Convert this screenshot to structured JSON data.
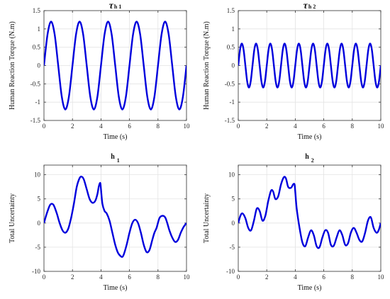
{
  "chart_data": [
    {
      "type": "line",
      "title_main": "τ",
      "title_sub": "h 1",
      "xlabel": "Time (s)",
      "ylabel": "Human Reaction Torque (N.m)",
      "xlim": [
        0,
        10
      ],
      "ylim": [
        -1.5,
        1.5
      ],
      "xticks": [
        0,
        2,
        4,
        6,
        8,
        10
      ],
      "yticks": [
        -1.5,
        -1,
        -0.5,
        0,
        0.5,
        1,
        1.5
      ],
      "grid": true,
      "color": "#0000dd",
      "series": [
        {
          "x": [
            0,
            0.25,
            0.5,
            0.75,
            1,
            1.25,
            1.5,
            1.75,
            2,
            2.25,
            2.5,
            2.75,
            3,
            3.25,
            3.5,
            3.75,
            4,
            4.25,
            4.5,
            4.75,
            5,
            5.25,
            5.5,
            5.75,
            6,
            6.25,
            6.5,
            6.75,
            7,
            7.25,
            7.5,
            7.75,
            8,
            8.25,
            8.5,
            8.75,
            9,
            9.25,
            9.5,
            9.75,
            10
          ],
          "y": [
            0,
            0.85,
            1.2,
            0.85,
            0,
            -0.85,
            -1.2,
            -0.85,
            0,
            0.85,
            1.2,
            0.85,
            0,
            -0.85,
            -1.2,
            -0.85,
            0,
            0.85,
            1.2,
            0.85,
            0,
            -0.85,
            -1.2,
            -0.85,
            0,
            0.85,
            1.2,
            0.85,
            0,
            -0.85,
            -1.2,
            -0.85,
            0,
            0.85,
            1.2,
            0.85,
            0,
            -0.85,
            -1.2,
            -0.85,
            0
          ]
        }
      ]
    },
    {
      "type": "line",
      "title_main": "τ",
      "title_sub": "h 2",
      "xlabel": "Time (s)",
      "ylabel": "Human Reaction Torque (N.m)",
      "xlim": [
        0,
        10
      ],
      "ylim": [
        -1.5,
        1.5
      ],
      "xticks": [
        0,
        2,
        4,
        6,
        8,
        10
      ],
      "yticks": [
        -1.5,
        -1,
        -0.5,
        0,
        0.5,
        1,
        1.5
      ],
      "grid": true,
      "color": "#0000dd",
      "series": [
        {
          "x": [
            0,
            0.125,
            0.25,
            0.375,
            0.5,
            0.625,
            0.75,
            0.875,
            1,
            1.125,
            1.25,
            1.375,
            1.5,
            1.625,
            1.75,
            1.875,
            2,
            2.125,
            2.25,
            2.375,
            2.5,
            2.625,
            2.75,
            2.875,
            3,
            3.125,
            3.25,
            3.375,
            3.5,
            3.625,
            3.75,
            3.875,
            4,
            4.125,
            4.25,
            4.375,
            4.5,
            4.625,
            4.75,
            4.875,
            5,
            5.125,
            5.25,
            5.375,
            5.5,
            5.625,
            5.75,
            5.875,
            6,
            6.125,
            6.25,
            6.375,
            6.5,
            6.625,
            6.75,
            6.875,
            7,
            7.125,
            7.25,
            7.375,
            7.5,
            7.625,
            7.75,
            7.875,
            8,
            8.125,
            8.25,
            8.375,
            8.5,
            8.625,
            8.75,
            8.875,
            9,
            9.125,
            9.25,
            9.375,
            9.5,
            9.625,
            9.75,
            9.875,
            10
          ],
          "y": [
            0,
            0.43,
            0.6,
            0.43,
            0,
            -0.43,
            -0.6,
            -0.43,
            0,
            0.43,
            0.6,
            0.43,
            0,
            -0.43,
            -0.6,
            -0.43,
            0,
            0.43,
            0.6,
            0.43,
            0,
            -0.43,
            -0.6,
            -0.43,
            0,
            0.43,
            0.6,
            0.43,
            0,
            -0.43,
            -0.6,
            -0.43,
            0,
            0.43,
            0.6,
            0.43,
            0,
            -0.43,
            -0.6,
            -0.43,
            0,
            0.43,
            0.6,
            0.43,
            0,
            -0.43,
            -0.6,
            -0.43,
            0,
            0.43,
            0.6,
            0.43,
            0,
            -0.43,
            -0.6,
            -0.43,
            0,
            0.43,
            0.6,
            0.43,
            0,
            -0.43,
            -0.6,
            -0.43,
            0,
            0.43,
            0.6,
            0.43,
            0,
            -0.43,
            -0.6,
            -0.43,
            0,
            0.43,
            0.6,
            0.43,
            0,
            -0.43,
            -0.6,
            -0.43,
            0
          ]
        }
      ]
    },
    {
      "type": "line",
      "title_main": "h",
      "title_sub": "1",
      "xlabel": "Time (s)",
      "ylabel": "Total Uncertainty",
      "xlim": [
        0,
        10
      ],
      "ylim": [
        -10,
        12
      ],
      "xticks": [
        0,
        2,
        4,
        6,
        8,
        10
      ],
      "yticks": [
        -10,
        -5,
        0,
        5,
        10
      ],
      "grid": true,
      "color": "#0000dd",
      "series": [
        {
          "x": [
            0,
            0.2,
            0.4,
            0.55,
            0.7,
            0.9,
            1.1,
            1.3,
            1.5,
            1.7,
            1.9,
            2.1,
            2.3,
            2.5,
            2.65,
            2.8,
            3.0,
            3.2,
            3.4,
            3.6,
            3.75,
            3.85,
            3.95,
            4.0,
            4.1,
            4.25,
            4.4,
            4.6,
            4.8,
            5.0,
            5.2,
            5.4,
            5.5,
            5.6,
            5.8,
            6.0,
            6.2,
            6.4,
            6.6,
            6.8,
            7.0,
            7.2,
            7.4,
            7.6,
            7.75,
            7.9,
            8.1,
            8.3,
            8.5,
            8.65,
            8.8,
            9.0,
            9.2,
            9.4,
            9.6,
            9.8,
            10
          ],
          "y": [
            0,
            2.0,
            3.6,
            4.0,
            3.6,
            2.0,
            0.0,
            -1.5,
            -2.0,
            -1.2,
            1.0,
            4.0,
            7.5,
            9.3,
            9.6,
            9.0,
            7.0,
            5.0,
            4.2,
            4.6,
            6.0,
            7.6,
            8.3,
            7.0,
            4.0,
            2.5,
            2.0,
            0.5,
            -2.0,
            -4.5,
            -6.2,
            -6.9,
            -7.0,
            -6.5,
            -4.5,
            -2.0,
            0.0,
            0.7,
            0.0,
            -2.0,
            -4.5,
            -6.0,
            -5.6,
            -3.5,
            -2.0,
            -1.0,
            1.0,
            1.5,
            1.2,
            0.0,
            -1.5,
            -3.0,
            -3.9,
            -3.5,
            -2.0,
            -0.8,
            0.0
          ]
        }
      ]
    },
    {
      "type": "line",
      "title_main": "h",
      "title_sub": "2",
      "xlabel": "Time (s)",
      "ylabel": "Total Uncertainty",
      "xlim": [
        0,
        10
      ],
      "ylim": [
        -10,
        12
      ],
      "xticks": [
        0,
        2,
        4,
        6,
        8,
        10
      ],
      "yticks": [
        -10,
        -5,
        0,
        5,
        10
      ],
      "grid": true,
      "color": "#0000dd",
      "series": [
        {
          "x": [
            0,
            0.15,
            0.3,
            0.5,
            0.7,
            0.9,
            1.1,
            1.3,
            1.5,
            1.7,
            1.9,
            2.1,
            2.3,
            2.45,
            2.6,
            2.8,
            3.0,
            3.2,
            3.35,
            3.5,
            3.7,
            3.85,
            3.95,
            4.0,
            4.1,
            4.3,
            4.5,
            4.7,
            4.9,
            5.1,
            5.3,
            5.5,
            5.7,
            5.9,
            6.1,
            6.3,
            6.5,
            6.7,
            6.9,
            7.1,
            7.3,
            7.5,
            7.7,
            7.9,
            8.1,
            8.3,
            8.5,
            8.7,
            8.9,
            9.1,
            9.3,
            9.5,
            9.7,
            9.85,
            10
          ],
          "y": [
            0,
            1.5,
            2.0,
            1.0,
            -1.0,
            -1.5,
            0.5,
            3.0,
            2.5,
            0.5,
            1.5,
            4.5,
            6.7,
            6.5,
            5.0,
            5.5,
            8.0,
            9.5,
            9.2,
            7.5,
            7.3,
            8.0,
            8.0,
            6.5,
            3.0,
            -1.0,
            -4.0,
            -4.8,
            -3.0,
            -1.5,
            -2.5,
            -4.8,
            -5.0,
            -3.0,
            -1.5,
            -2.0,
            -4.5,
            -4.7,
            -3.0,
            -1.5,
            -2.5,
            -4.5,
            -4.2,
            -2.0,
            -1.0,
            -2.0,
            -3.5,
            -3.8,
            -2.0,
            0.5,
            1.2,
            -1.0,
            -2.0,
            -1.5,
            0.0
          ]
        }
      ]
    }
  ]
}
